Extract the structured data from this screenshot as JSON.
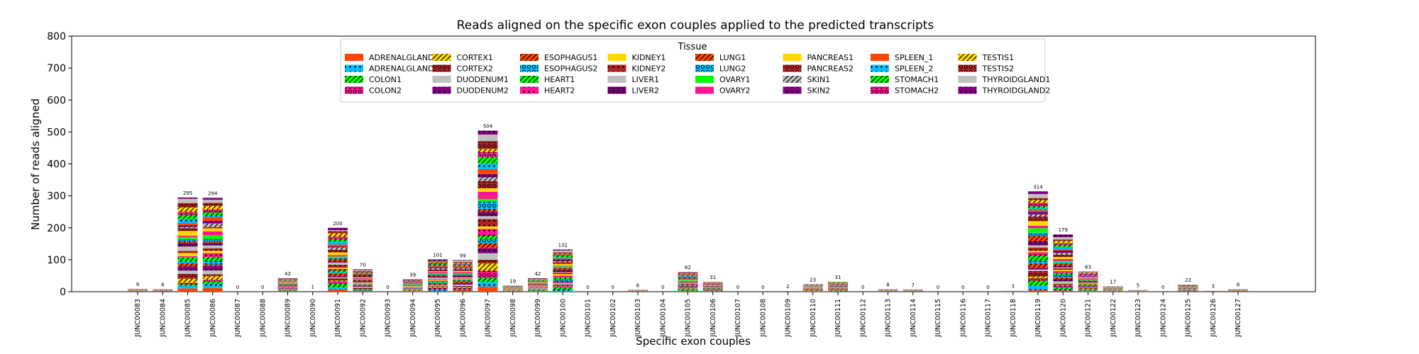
{
  "chart_data": {
    "type": "bar",
    "stacked": true,
    "title": "Reads aligned on the specific exon couples applied to the predicted transcripts",
    "xlabel": "Specific exon couples",
    "ylabel": "Number of reads aligned",
    "ylim": [
      0,
      800
    ],
    "yticks": [
      "0",
      "100",
      "200",
      "300",
      "400",
      "500",
      "600",
      "700",
      "800"
    ],
    "legend": {
      "title": "Tissue",
      "placement": "top-center",
      "columns": 8
    },
    "categories": [
      "JUNC00083",
      "JUNC00084",
      "JUNC00085",
      "JUNC00086",
      "JUNC00087",
      "JUNC00088",
      "JUNC00089",
      "JUNC00090",
      "JUNC00091",
      "JUNC00092",
      "JUNC00093",
      "JUNC00094",
      "JUNC00095",
      "JUNC00096",
      "JUNC00097",
      "JUNC00098",
      "JUNC00099",
      "JUNC00100",
      "JUNC00101",
      "JUNC00102",
      "JUNC00103",
      "JUNC00104",
      "JUNC00105",
      "JUNC00106",
      "JUNC00107",
      "JUNC00108",
      "JUNC00109",
      "JUNC00110",
      "JUNC00111",
      "JUNC00112",
      "JUNC00113",
      "JUNC00114",
      "JUNC00115",
      "JUNC00116",
      "JUNC00117",
      "JUNC00118",
      "JUNC00119",
      "JUNC00120",
      "JUNC00121",
      "JUNC00122",
      "JUNC00123",
      "JUNC00124",
      "JUNC00125",
      "JUNC00126",
      "JUNC00127"
    ],
    "totals": [
      9,
      8,
      295,
      294,
      0,
      0,
      42,
      1,
      200,
      70,
      0,
      39,
      101,
      99,
      504,
      19,
      42,
      132,
      0,
      0,
      6,
      0,
      62,
      31,
      0,
      0,
      2,
      23,
      31,
      0,
      8,
      7,
      0,
      0,
      0,
      3,
      314,
      179,
      63,
      17,
      5,
      0,
      22,
      3,
      8
    ],
    "series": [
      {
        "name": "ADRENALGLAND1",
        "color": "#ff4500",
        "pattern": "none"
      },
      {
        "name": "ADRENALGLAND2",
        "color": "#00bfff",
        "pattern": "dots"
      },
      {
        "name": "COLON1",
        "color": "#00ff00",
        "pattern": "slash"
      },
      {
        "name": "COLON2",
        "color": "#ff1493",
        "pattern": "circles"
      },
      {
        "name": "CORTEX1",
        "color": "#ffd700",
        "pattern": "slash"
      },
      {
        "name": "CORTEX2",
        "color": "#b22222",
        "pattern": "circles"
      },
      {
        "name": "DUODENUM1",
        "color": "#c0c0c0",
        "pattern": "none"
      },
      {
        "name": "DUODENUM2",
        "color": "#800080",
        "pattern": "dots"
      },
      {
        "name": "ESOPHAGUS1",
        "color": "#ff4500",
        "pattern": "slash"
      },
      {
        "name": "ESOPHAGUS2",
        "color": "#00bfff",
        "pattern": "circles"
      },
      {
        "name": "HEART1",
        "color": "#00ff00",
        "pattern": "slash"
      },
      {
        "name": "HEART2",
        "color": "#ff1493",
        "pattern": "dots"
      },
      {
        "name": "KIDNEY1",
        "color": "#ffd700",
        "pattern": "none"
      },
      {
        "name": "KIDNEY2",
        "color": "#b22222",
        "pattern": "dots"
      },
      {
        "name": "LIVER1",
        "color": "#c0c0c0",
        "pattern": "none"
      },
      {
        "name": "LIVER2",
        "color": "#800080",
        "pattern": "circles"
      },
      {
        "name": "LUNG1",
        "color": "#ff4500",
        "pattern": "slash"
      },
      {
        "name": "LUNG2",
        "color": "#00bfff",
        "pattern": "circles"
      },
      {
        "name": "OVARY1",
        "color": "#00ff00",
        "pattern": "none"
      },
      {
        "name": "OVARY2",
        "color": "#ff1493",
        "pattern": "none"
      },
      {
        "name": "PANCREAS1",
        "color": "#ffd700",
        "pattern": "none"
      },
      {
        "name": "PANCREAS2",
        "color": "#b22222",
        "pattern": "circles"
      },
      {
        "name": "SKIN1",
        "color": "#c0c0c0",
        "pattern": "slash"
      },
      {
        "name": "SKIN2",
        "color": "#800080",
        "pattern": "dots"
      },
      {
        "name": "SPLEEN_1",
        "color": "#ff4500",
        "pattern": "none"
      },
      {
        "name": "SPLEEN_2",
        "color": "#00bfff",
        "pattern": "dots"
      },
      {
        "name": "STOMACH1",
        "color": "#00ff00",
        "pattern": "slash"
      },
      {
        "name": "STOMACH2",
        "color": "#ff1493",
        "pattern": "circles"
      },
      {
        "name": "TESTIS1",
        "color": "#ffd700",
        "pattern": "slash"
      },
      {
        "name": "TESTIS2",
        "color": "#b22222",
        "pattern": "circles"
      },
      {
        "name": "THYROIDGLAND1",
        "color": "#c0c0c0",
        "pattern": "none"
      },
      {
        "name": "THYROIDGLAND2",
        "color": "#800080",
        "pattern": "dots"
      }
    ]
  }
}
